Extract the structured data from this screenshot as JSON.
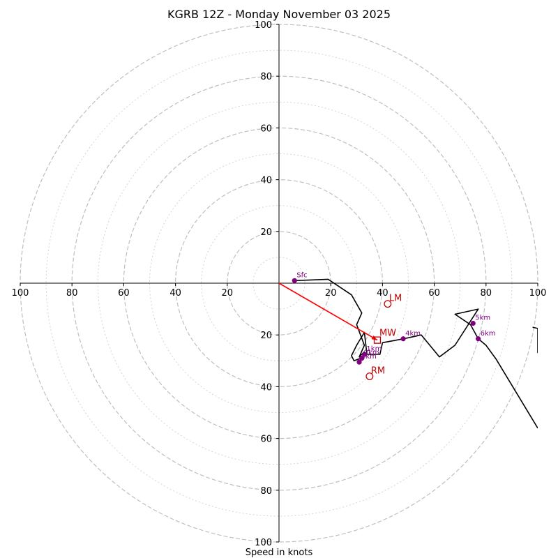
{
  "chart_data": {
    "type": "hodograph",
    "title": "KGRB 12Z - Monday November 03 2025",
    "xlabel": "Speed in knots",
    "axis_range": [
      -100,
      100
    ],
    "rings_major": [
      20,
      40,
      60,
      80,
      100
    ],
    "rings_minor": [
      10,
      30,
      50,
      70,
      90
    ],
    "ticks": {
      "left": [
        "100",
        "80",
        "60",
        "40",
        "20"
      ],
      "right": [
        "20",
        "40",
        "60",
        "80",
        "100"
      ],
      "top": [
        "20",
        "40",
        "60",
        "80",
        "100"
      ],
      "bottom": [
        "20",
        "40",
        "60",
        "80",
        "100"
      ]
    },
    "trace": [
      {
        "u": 6,
        "v": 1
      },
      {
        "u": 19,
        "v": 1.5
      },
      {
        "u": 28,
        "v": -4.5
      },
      {
        "u": 32,
        "v": -11.5
      },
      {
        "u": 30,
        "v": -16
      },
      {
        "u": 33,
        "v": -24
      },
      {
        "u": 31,
        "v": -28.5
      },
      {
        "u": 33,
        "v": -26.5
      },
      {
        "u": 33,
        "v": -28
      },
      {
        "u": 31.5,
        "v": -29
      },
      {
        "u": 29,
        "v": -30
      },
      {
        "u": 28,
        "v": -28
      },
      {
        "u": 30,
        "v": -24
      },
      {
        "u": 33,
        "v": -19
      },
      {
        "u": 34,
        "v": -27.5
      },
      {
        "u": 39,
        "v": -27.5
      },
      {
        "u": 40,
        "v": -23
      },
      {
        "u": 48,
        "v": -21.5
      },
      {
        "u": 55,
        "v": -20
      },
      {
        "u": 62,
        "v": -28.5
      },
      {
        "u": 68,
        "v": -24
      },
      {
        "u": 77,
        "v": -10
      },
      {
        "u": 68,
        "v": -12
      },
      {
        "u": 74,
        "v": -16
      },
      {
        "u": 77,
        "v": -21.5
      },
      {
        "u": 80,
        "v": -24
      },
      {
        "u": 84,
        "v": -29.5
      },
      {
        "u": 100,
        "v": -56
      }
    ],
    "trace_segment_2": [
      {
        "u": 98,
        "v": -17
      },
      {
        "u": 100,
        "v": -17.5
      },
      {
        "u": 100,
        "v": -27
      }
    ],
    "height_markers": [
      {
        "label": "Sfc",
        "u": 6,
        "v": 1
      },
      {
        "label": "1km",
        "u": 33,
        "v": -27.5
      },
      {
        "label": "2km",
        "u": 32,
        "v": -29
      },
      {
        "label": "3km",
        "u": 31,
        "v": -30.5
      },
      {
        "label": "4km",
        "u": 48,
        "v": -21.5
      },
      {
        "label": "5km",
        "u": 75,
        "v": -15.5
      },
      {
        "label": "6km",
        "u": 77,
        "v": -21.5
      }
    ],
    "storm_motion": {
      "LM": {
        "label": "LM",
        "u": 42,
        "v": -8
      },
      "RM": {
        "label": "RM",
        "u": 35,
        "v": -36
      },
      "MW": {
        "label": "MW",
        "u": 38,
        "v": -22
      }
    },
    "shear_vector": {
      "from": {
        "u": 0,
        "v": 0
      },
      "to": {
        "u": 38,
        "v": -22
      }
    },
    "colors": {
      "trace": "#000000",
      "markers": "#800080",
      "storm_motion": "#c00000",
      "vector": "#ff0000"
    }
  }
}
